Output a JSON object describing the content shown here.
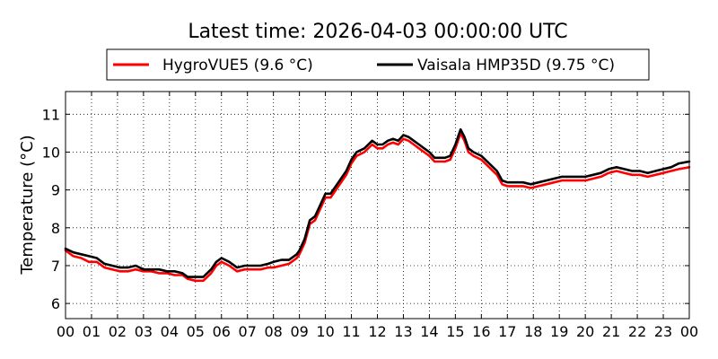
{
  "chart_data": {
    "type": "line",
    "title": "Latest time: 2026-04-03 00:00:00 UTC",
    "ylabel": "Temperature (°C)",
    "xlabel": "",
    "xlim": [
      0,
      24
    ],
    "ylim": [
      5.6,
      11.6
    ],
    "yticks": [
      6,
      7,
      8,
      9,
      10,
      11
    ],
    "xtick_labels": [
      "00",
      "01",
      "02",
      "03",
      "04",
      "05",
      "06",
      "07",
      "08",
      "09",
      "10",
      "11",
      "12",
      "13",
      "14",
      "15",
      "16",
      "17",
      "18",
      "19",
      "20",
      "21",
      "22",
      "23",
      "00"
    ],
    "grid": true,
    "legend_position": "top",
    "series": [
      {
        "name": "HygroVUE5 (9.6 °C)",
        "color": "#ff0000",
        "x": [
          0,
          0.3,
          0.6,
          0.9,
          1.2,
          1.5,
          1.8,
          2.1,
          2.4,
          2.7,
          3.0,
          3.3,
          3.6,
          3.9,
          4.2,
          4.5,
          4.7,
          5.0,
          5.3,
          5.6,
          5.8,
          6.0,
          6.3,
          6.6,
          6.9,
          7.2,
          7.5,
          7.8,
          8.0,
          8.3,
          8.6,
          8.9,
          9.0,
          9.2,
          9.4,
          9.6,
          9.8,
          10.0,
          10.2,
          10.4,
          10.6,
          10.8,
          11.0,
          11.2,
          11.5,
          11.8,
          12.0,
          12.2,
          12.4,
          12.6,
          12.8,
          13.0,
          13.2,
          13.4,
          13.6,
          13.8,
          14.0,
          14.2,
          14.4,
          14.6,
          14.8,
          15.0,
          15.1,
          15.2,
          15.35,
          15.5,
          15.7,
          16.0,
          16.3,
          16.6,
          16.8,
          17.0,
          17.3,
          17.6,
          17.9,
          18.2,
          18.5,
          18.8,
          19.1,
          19.4,
          19.7,
          20.0,
          20.3,
          20.6,
          20.9,
          21.2,
          21.5,
          21.8,
          22.1,
          22.4,
          22.7,
          23.0,
          23.3,
          23.6,
          24.0
        ],
        "y": [
          7.4,
          7.25,
          7.2,
          7.1,
          7.1,
          6.95,
          6.9,
          6.85,
          6.85,
          6.9,
          6.85,
          6.85,
          6.8,
          6.8,
          6.75,
          6.75,
          6.65,
          6.6,
          6.6,
          6.8,
          7.0,
          7.1,
          7.0,
          6.85,
          6.9,
          6.9,
          6.9,
          6.95,
          6.95,
          7.0,
          7.05,
          7.2,
          7.3,
          7.6,
          8.1,
          8.2,
          8.5,
          8.8,
          8.8,
          9.0,
          9.2,
          9.4,
          9.7,
          9.9,
          10.0,
          10.2,
          10.1,
          10.1,
          10.2,
          10.25,
          10.2,
          10.35,
          10.3,
          10.2,
          10.1,
          10.0,
          9.9,
          9.75,
          9.75,
          9.75,
          9.8,
          10.1,
          10.3,
          10.5,
          10.3,
          10.0,
          9.9,
          9.8,
          9.6,
          9.4,
          9.15,
          9.1,
          9.1,
          9.1,
          9.05,
          9.1,
          9.15,
          9.2,
          9.25,
          9.25,
          9.25,
          9.25,
          9.3,
          9.35,
          9.45,
          9.5,
          9.45,
          9.4,
          9.4,
          9.35,
          9.4,
          9.45,
          9.5,
          9.55,
          9.6
        ]
      },
      {
        "name": "Vaisala HMP35D (9.75 °C)",
        "color": "#000000",
        "x": [
          0,
          0.3,
          0.6,
          0.9,
          1.2,
          1.5,
          1.8,
          2.1,
          2.4,
          2.7,
          3.0,
          3.3,
          3.6,
          3.9,
          4.2,
          4.5,
          4.7,
          5.0,
          5.3,
          5.6,
          5.8,
          6.0,
          6.3,
          6.6,
          6.9,
          7.2,
          7.5,
          7.8,
          8.0,
          8.3,
          8.6,
          8.9,
          9.0,
          9.2,
          9.4,
          9.6,
          9.8,
          10.0,
          10.2,
          10.4,
          10.6,
          10.8,
          11.0,
          11.2,
          11.5,
          11.8,
          12.0,
          12.2,
          12.4,
          12.6,
          12.8,
          13.0,
          13.2,
          13.4,
          13.6,
          13.8,
          14.0,
          14.2,
          14.4,
          14.6,
          14.8,
          15.0,
          15.1,
          15.2,
          15.35,
          15.5,
          15.7,
          16.0,
          16.3,
          16.6,
          16.8,
          17.0,
          17.3,
          17.6,
          17.9,
          18.2,
          18.5,
          18.8,
          19.1,
          19.4,
          19.7,
          20.0,
          20.3,
          20.6,
          20.9,
          21.2,
          21.5,
          21.8,
          22.1,
          22.4,
          22.7,
          23.0,
          23.3,
          23.6,
          24.0
        ],
        "y": [
          7.45,
          7.35,
          7.3,
          7.25,
          7.2,
          7.05,
          7.0,
          6.95,
          6.95,
          7.0,
          6.9,
          6.9,
          6.9,
          6.85,
          6.85,
          6.8,
          6.7,
          6.7,
          6.7,
          6.9,
          7.1,
          7.2,
          7.1,
          6.95,
          7.0,
          7.0,
          7.0,
          7.05,
          7.1,
          7.15,
          7.15,
          7.3,
          7.4,
          7.7,
          8.2,
          8.3,
          8.6,
          8.9,
          8.9,
          9.1,
          9.3,
          9.5,
          9.8,
          10.0,
          10.1,
          10.3,
          10.2,
          10.2,
          10.3,
          10.35,
          10.3,
          10.45,
          10.4,
          10.3,
          10.2,
          10.1,
          10.0,
          9.85,
          9.85,
          9.85,
          9.9,
          10.2,
          10.4,
          10.6,
          10.4,
          10.1,
          10.0,
          9.9,
          9.7,
          9.5,
          9.25,
          9.2,
          9.2,
          9.2,
          9.15,
          9.2,
          9.25,
          9.3,
          9.35,
          9.35,
          9.35,
          9.35,
          9.4,
          9.45,
          9.55,
          9.6,
          9.55,
          9.5,
          9.5,
          9.45,
          9.5,
          9.55,
          9.6,
          9.7,
          9.75
        ]
      }
    ]
  }
}
